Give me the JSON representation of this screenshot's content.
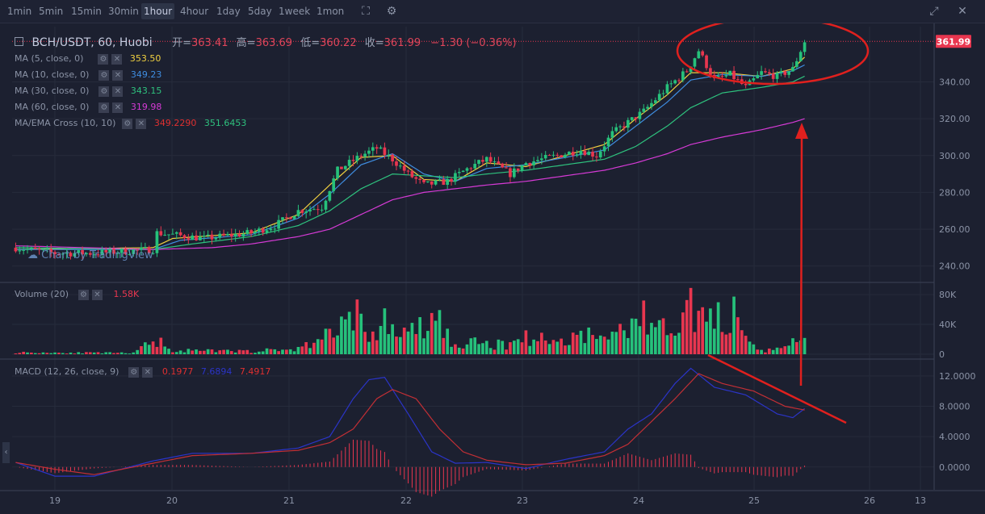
{
  "toolbar": {
    "timeframes": [
      "1min",
      "5min",
      "15min",
      "30min",
      "1hour",
      "4hour",
      "1day",
      "5day",
      "1week",
      "1mon"
    ],
    "active_timeframe": "1hour"
  },
  "header": {
    "symbol": "BCH/USDT, 60, Huobi",
    "open_label": "开=",
    "open": "363.41",
    "high_label": "高=",
    "high": "363.69",
    "low_label": "低=",
    "low": "360.22",
    "close_label": "收=",
    "close": "361.99",
    "change": "−1.30 (−0.36%)"
  },
  "watermark": "Chart by TradingView",
  "indicators": [
    {
      "label": "MA (5, close, 0)",
      "value": "353.50",
      "color": "#f0d040"
    },
    {
      "label": "MA (10, close, 0)",
      "value": "349.23",
      "color": "#3f8de0"
    },
    {
      "label": "MA (30, close, 0)",
      "value": "343.15",
      "color": "#2ec27e"
    },
    {
      "label": "MA (60, close, 0)",
      "value": "319.98",
      "color": "#d63ad6"
    },
    {
      "label": "MA/EMA Cross (10, 10)",
      "value": "349.2290",
      "value2": "351.6453",
      "color": "#e03030",
      "color2": "#2ec27e"
    }
  ],
  "volume_legend": {
    "label": "Volume (20)",
    "value": "1.58K"
  },
  "macd_legend": {
    "label": "MACD (12, 26, close, 9)",
    "v1": "0.1977",
    "v2": "7.6894",
    "v3": "7.4917"
  },
  "colors": {
    "up": "#26c17b",
    "down": "#e8364f",
    "bg": "#1c2030",
    "grid": "#262b3b"
  },
  "chart_data": [
    {
      "type": "candlestick",
      "title": "BCH/USDT, 60, Huobi",
      "ylim": [
        232,
        370
      ],
      "yticks": [
        "240.00",
        "260.00",
        "280.00",
        "300.00",
        "320.00",
        "340.00"
      ],
      "last_price": "361.99",
      "xticks": [
        "19",
        "20",
        "21",
        "22",
        "23",
        "24",
        "25",
        "26",
        "13"
      ],
      "price_path": [
        [
          0,
          250
        ],
        [
          10,
          247
        ],
        [
          20,
          247
        ],
        [
          35,
          249
        ],
        [
          36,
          258
        ],
        [
          48,
          255
        ],
        [
          60,
          258
        ],
        [
          66,
          262
        ],
        [
          72,
          270
        ],
        [
          78,
          272
        ],
        [
          82,
          292
        ],
        [
          88,
          300
        ],
        [
          92,
          304
        ],
        [
          96,
          298
        ],
        [
          100,
          290
        ],
        [
          104,
          284
        ],
        [
          110,
          286
        ],
        [
          116,
          294
        ],
        [
          120,
          298
        ],
        [
          126,
          290
        ],
        [
          130,
          296
        ],
        [
          138,
          300
        ],
        [
          144,
          303
        ],
        [
          148,
          300
        ],
        [
          152,
          312
        ],
        [
          156,
          318
        ],
        [
          160,
          324
        ],
        [
          166,
          337
        ],
        [
          171,
          346
        ],
        [
          174,
          357
        ],
        [
          178,
          341
        ],
        [
          182,
          344
        ],
        [
          186,
          337
        ],
        [
          190,
          345
        ],
        [
          194,
          343
        ],
        [
          198,
          347
        ],
        [
          201,
          362
        ]
      ],
      "ma_series": [
        {
          "name": "MA (5, close, 0)",
          "color": "#f0d040",
          "points": [
            [
              0,
              249
            ],
            [
              35,
              250
            ],
            [
              40,
              255
            ],
            [
              60,
              258
            ],
            [
              72,
              268
            ],
            [
              80,
              284
            ],
            [
              88,
              299
            ],
            [
              96,
              300
            ],
            [
              104,
              287
            ],
            [
              112,
              286
            ],
            [
              120,
              296
            ],
            [
              130,
              294
            ],
            [
              140,
              300
            ],
            [
              150,
              306
            ],
            [
              158,
              320
            ],
            [
              166,
              333
            ],
            [
              172,
              345
            ],
            [
              180,
              345
            ],
            [
              190,
              343
            ],
            [
              198,
              347
            ],
            [
              201,
              353.5
            ]
          ]
        },
        {
          "name": "MA (10, close, 0)",
          "color": "#3f8de0",
          "points": [
            [
              0,
              249
            ],
            [
              35,
              249
            ],
            [
              42,
              254
            ],
            [
              60,
              257
            ],
            [
              72,
              266
            ],
            [
              80,
              279
            ],
            [
              88,
              295
            ],
            [
              96,
              301
            ],
            [
              104,
              290
            ],
            [
              112,
              286
            ],
            [
              120,
              293
            ],
            [
              130,
              295
            ],
            [
              140,
              299
            ],
            [
              150,
              303
            ],
            [
              158,
              316
            ],
            [
              166,
              329
            ],
            [
              172,
              341
            ],
            [
              180,
              344
            ],
            [
              190,
              343
            ],
            [
              198,
              346
            ],
            [
              201,
              349.2
            ]
          ]
        },
        {
          "name": "MA (30, close, 0)",
          "color": "#2ec27e",
          "points": [
            [
              0,
              250
            ],
            [
              35,
              249
            ],
            [
              45,
              252
            ],
            [
              60,
              256
            ],
            [
              72,
              262
            ],
            [
              80,
              270
            ],
            [
              88,
              282
            ],
            [
              96,
              290
            ],
            [
              104,
              289
            ],
            [
              112,
              288
            ],
            [
              120,
              290
            ],
            [
              130,
              292
            ],
            [
              140,
              295
            ],
            [
              150,
              298
            ],
            [
              158,
              305
            ],
            [
              166,
              316
            ],
            [
              172,
              326
            ],
            [
              180,
              334
            ],
            [
              190,
              337
            ],
            [
              198,
              340
            ],
            [
              201,
              343.1
            ]
          ]
        },
        {
          "name": "MA (60, close, 0)",
          "color": "#d63ad6",
          "points": [
            [
              0,
              251
            ],
            [
              35,
              249
            ],
            [
              50,
              250
            ],
            [
              60,
              252
            ],
            [
              72,
              256
            ],
            [
              80,
              260
            ],
            [
              88,
              268
            ],
            [
              96,
              276
            ],
            [
              104,
              280
            ],
            [
              112,
              282
            ],
            [
              120,
              284
            ],
            [
              130,
              286
            ],
            [
              140,
              289
            ],
            [
              150,
              292
            ],
            [
              158,
              296
            ],
            [
              166,
              301
            ],
            [
              172,
              306
            ],
            [
              180,
              310
            ],
            [
              190,
              314
            ],
            [
              198,
              318
            ],
            [
              201,
              320
            ]
          ]
        }
      ]
    },
    {
      "type": "bar",
      "title": "Volume (20)",
      "ylim": [
        0,
        92
      ],
      "yticks": [
        "0",
        "40K",
        "80K"
      ],
      "unit": "K",
      "profile": [
        [
          0,
          3
        ],
        [
          30,
          2
        ],
        [
          36,
          25
        ],
        [
          40,
          6
        ],
        [
          60,
          5
        ],
        [
          72,
          9
        ],
        [
          76,
          22
        ],
        [
          82,
          40
        ],
        [
          86,
          88
        ],
        [
          90,
          15
        ],
        [
          94,
          60
        ],
        [
          98,
          30
        ],
        [
          104,
          45
        ],
        [
          108,
          55
        ],
        [
          112,
          12
        ],
        [
          118,
          20
        ],
        [
          124,
          15
        ],
        [
          130,
          30
        ],
        [
          138,
          20
        ],
        [
          144,
          35
        ],
        [
          150,
          25
        ],
        [
          156,
          50
        ],
        [
          160,
          60
        ],
        [
          166,
          40
        ],
        [
          170,
          80
        ],
        [
          174,
          70
        ],
        [
          178,
          50
        ],
        [
          182,
          80
        ],
        [
          186,
          20
        ],
        [
          190,
          5
        ],
        [
          196,
          10
        ],
        [
          201,
          38
        ]
      ]
    },
    {
      "type": "line",
      "title": "MACD (12, 26, close, 9)",
      "ylim": [
        -3,
        14
      ],
      "yticks": [
        "0.0000",
        "4.0000",
        "8.0000",
        "12.0000"
      ],
      "series": [
        {
          "name": "MACD",
          "color": "#2b34c8",
          "points": [
            [
              0,
              0.6
            ],
            [
              10,
              -1.2
            ],
            [
              20,
              -1.2
            ],
            [
              35,
              0.8
            ],
            [
              45,
              1.8
            ],
            [
              60,
              1.8
            ],
            [
              72,
              2.5
            ],
            [
              80,
              4
            ],
            [
              86,
              9
            ],
            [
              90,
              11.5
            ],
            [
              94,
              11.8
            ],
            [
              100,
              7
            ],
            [
              106,
              2
            ],
            [
              112,
              0.5
            ],
            [
              120,
              0.6
            ],
            [
              130,
              -0.2
            ],
            [
              140,
              1
            ],
            [
              150,
              2
            ],
            [
              156,
              5
            ],
            [
              162,
              7
            ],
            [
              168,
              11
            ],
            [
              172,
              13
            ],
            [
              178,
              10.5
            ],
            [
              186,
              9.5
            ],
            [
              194,
              7
            ],
            [
              198,
              6.5
            ],
            [
              201,
              7.7
            ]
          ]
        },
        {
          "name": "Signal",
          "color": "#c22f35",
          "points": [
            [
              0,
              0.6
            ],
            [
              10,
              -0.3
            ],
            [
              20,
              -1
            ],
            [
              35,
              0.5
            ],
            [
              45,
              1.5
            ],
            [
              60,
              1.8
            ],
            [
              72,
              2.2
            ],
            [
              80,
              3.2
            ],
            [
              86,
              5
            ],
            [
              92,
              9
            ],
            [
              96,
              10.2
            ],
            [
              102,
              9
            ],
            [
              108,
              5
            ],
            [
              114,
              2
            ],
            [
              120,
              0.9
            ],
            [
              130,
              0.3
            ],
            [
              140,
              0.5
            ],
            [
              150,
              1.5
            ],
            [
              156,
              3
            ],
            [
              162,
              6
            ],
            [
              168,
              9
            ],
            [
              174,
              12.3
            ],
            [
              180,
              11
            ],
            [
              188,
              10
            ],
            [
              196,
              8
            ],
            [
              201,
              7.5
            ]
          ]
        }
      ]
    }
  ]
}
